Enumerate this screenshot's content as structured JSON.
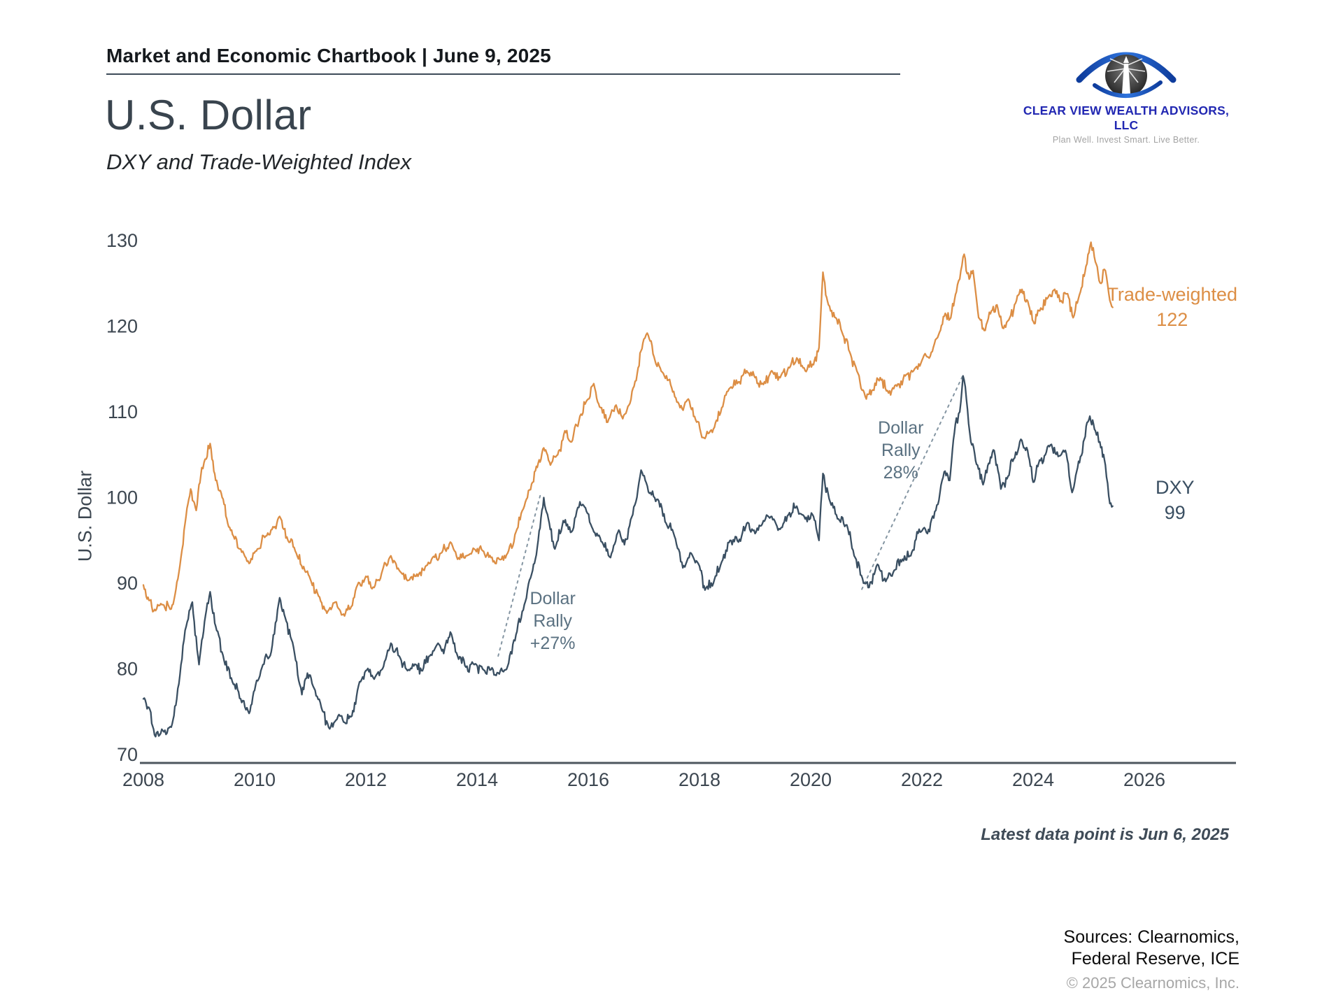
{
  "header": {
    "title": "Market and Economic Chartbook | June 9, 2025"
  },
  "logo": {
    "name": "Clear View Wealth Advisors, LLC",
    "tagline": "Plan Well. Invest Smart. Live Better."
  },
  "page": {
    "title": "U.S. Dollar",
    "subtitle": "DXY and Trade-Weighted Index"
  },
  "footnote": "Latest data point is Jun 6, 2025",
  "sources": {
    "line1": "Sources: Clearnomics,",
    "line2": "Federal Reserve, ICE",
    "copyright": "© 2025 Clearnomics, Inc."
  },
  "chart_data": {
    "type": "line",
    "title": "U.S. Dollar",
    "subtitle": "DXY and Trade-Weighted Index",
    "ylabel": "U.S. Dollar",
    "ylim": [
      70,
      130
    ],
    "yticks": [
      70,
      80,
      90,
      100,
      110,
      120,
      130
    ],
    "xticks": [
      2008,
      2010,
      2012,
      2014,
      2016,
      2018,
      2020,
      2022,
      2024,
      2026
    ],
    "xlim": [
      2008,
      2027.6
    ],
    "grid": false,
    "legend_position": "end-of-line-labels",
    "colors": {
      "trade_weighted": "#dc8e45",
      "dxy": "#3a4f62",
      "annotation_text": "#5a7181",
      "dashed_line": "#8495a2",
      "axis_line": "#4d565e",
      "tick_text": "#3c4650"
    },
    "annotations": [
      {
        "lines": [
          "Dollar",
          "Rally",
          "+27%"
        ],
        "text_x": 2015.36,
        "text_y": 88.3,
        "line_from": [
          2014.38,
          81.5
        ],
        "line_to": [
          2015.15,
          100.6
        ]
      },
      {
        "lines": [
          "Dollar",
          "Rally",
          "28%"
        ],
        "text_x": 2021.62,
        "text_y": 108.2,
        "line_from": [
          2020.92,
          89.3
        ],
        "line_to": [
          2022.74,
          114.3
        ]
      }
    ],
    "series": [
      {
        "name": "Trade-weighted",
        "color": "#dc8e45",
        "label": {
          "text": "Trade-weighted",
          "value_text": "122",
          "x": 2026.5,
          "y": 123.7
        },
        "points": [
          [
            2008.0,
            89.8
          ],
          [
            2008.1,
            88.0
          ],
          [
            2008.22,
            86.8
          ],
          [
            2008.35,
            87.5
          ],
          [
            2008.5,
            87.0
          ],
          [
            2008.62,
            90.5
          ],
          [
            2008.75,
            97.0
          ],
          [
            2008.85,
            101.0
          ],
          [
            2008.95,
            98.5
          ],
          [
            2009.05,
            103.5
          ],
          [
            2009.13,
            104.5
          ],
          [
            2009.2,
            106.3
          ],
          [
            2009.3,
            102.0
          ],
          [
            2009.4,
            100.5
          ],
          [
            2009.5,
            97.5
          ],
          [
            2009.62,
            95.5
          ],
          [
            2009.75,
            94.0
          ],
          [
            2009.9,
            92.3
          ],
          [
            2010.05,
            94.0
          ],
          [
            2010.2,
            95.5
          ],
          [
            2010.35,
            96.5
          ],
          [
            2010.45,
            97.8
          ],
          [
            2010.6,
            95.0
          ],
          [
            2010.75,
            93.5
          ],
          [
            2010.9,
            91.5
          ],
          [
            2011.0,
            90.5
          ],
          [
            2011.15,
            88.5
          ],
          [
            2011.3,
            86.5
          ],
          [
            2011.45,
            87.8
          ],
          [
            2011.6,
            86.4
          ],
          [
            2011.72,
            87.0
          ],
          [
            2011.85,
            89.8
          ],
          [
            2012.0,
            90.8
          ],
          [
            2012.15,
            89.5
          ],
          [
            2012.3,
            91.5
          ],
          [
            2012.45,
            93.2
          ],
          [
            2012.6,
            91.5
          ],
          [
            2012.75,
            90.3
          ],
          [
            2012.9,
            90.8
          ],
          [
            2013.05,
            91.5
          ],
          [
            2013.2,
            93.0
          ],
          [
            2013.35,
            93.5
          ],
          [
            2013.52,
            94.8
          ],
          [
            2013.65,
            92.8
          ],
          [
            2013.8,
            93.2
          ],
          [
            2013.95,
            94.0
          ],
          [
            2014.1,
            93.8
          ],
          [
            2014.25,
            93.0
          ],
          [
            2014.4,
            92.8
          ],
          [
            2014.55,
            93.5
          ],
          [
            2014.7,
            96.0
          ],
          [
            2014.85,
            99.0
          ],
          [
            2015.0,
            101.8
          ],
          [
            2015.1,
            104.0
          ],
          [
            2015.2,
            105.8
          ],
          [
            2015.32,
            103.8
          ],
          [
            2015.45,
            105.0
          ],
          [
            2015.58,
            107.8
          ],
          [
            2015.7,
            106.5
          ],
          [
            2015.85,
            109.5
          ],
          [
            2016.0,
            111.5
          ],
          [
            2016.1,
            113.3
          ],
          [
            2016.22,
            110.5
          ],
          [
            2016.35,
            108.8
          ],
          [
            2016.5,
            110.8
          ],
          [
            2016.62,
            109.2
          ],
          [
            2016.75,
            111.0
          ],
          [
            2016.88,
            114.5
          ],
          [
            2017.0,
            118.5
          ],
          [
            2017.06,
            119.2
          ],
          [
            2017.2,
            116.0
          ],
          [
            2017.35,
            114.5
          ],
          [
            2017.5,
            112.8
          ],
          [
            2017.65,
            110.5
          ],
          [
            2017.8,
            111.5
          ],
          [
            2017.95,
            108.8
          ],
          [
            2018.1,
            106.9
          ],
          [
            2018.25,
            108.0
          ],
          [
            2018.4,
            110.5
          ],
          [
            2018.55,
            112.8
          ],
          [
            2018.7,
            113.5
          ],
          [
            2018.85,
            114.8
          ],
          [
            2019.0,
            114.0
          ],
          [
            2019.15,
            113.2
          ],
          [
            2019.3,
            114.8
          ],
          [
            2019.45,
            114.0
          ],
          [
            2019.6,
            115.2
          ],
          [
            2019.75,
            116.3
          ],
          [
            2019.9,
            114.8
          ],
          [
            2020.05,
            115.5
          ],
          [
            2020.15,
            117.5
          ],
          [
            2020.22,
            126.3
          ],
          [
            2020.32,
            122.5
          ],
          [
            2020.45,
            121.0
          ],
          [
            2020.58,
            119.0
          ],
          [
            2020.7,
            117.0
          ],
          [
            2020.85,
            114.5
          ],
          [
            2021.0,
            111.5
          ],
          [
            2021.1,
            112.5
          ],
          [
            2021.25,
            114.0
          ],
          [
            2021.4,
            112.2
          ],
          [
            2021.55,
            113.0
          ],
          [
            2021.7,
            114.2
          ],
          [
            2021.85,
            114.8
          ],
          [
            2022.0,
            116.0
          ],
          [
            2022.15,
            116.5
          ],
          [
            2022.3,
            119.0
          ],
          [
            2022.42,
            121.5
          ],
          [
            2022.52,
            121.0
          ],
          [
            2022.62,
            124.0
          ],
          [
            2022.7,
            126.5
          ],
          [
            2022.76,
            128.4
          ],
          [
            2022.85,
            125.5
          ],
          [
            2022.92,
            126.5
          ],
          [
            2023.02,
            121.0
          ],
          [
            2023.12,
            119.5
          ],
          [
            2023.25,
            121.8
          ],
          [
            2023.35,
            122.5
          ],
          [
            2023.45,
            119.8
          ],
          [
            2023.58,
            121.0
          ],
          [
            2023.7,
            123.0
          ],
          [
            2023.8,
            124.3
          ],
          [
            2023.92,
            122.5
          ],
          [
            2024.02,
            120.3
          ],
          [
            2024.12,
            121.8
          ],
          [
            2024.25,
            123.2
          ],
          [
            2024.37,
            124.2
          ],
          [
            2024.5,
            123.0
          ],
          [
            2024.62,
            123.8
          ],
          [
            2024.72,
            121.0
          ],
          [
            2024.85,
            124.0
          ],
          [
            2024.95,
            127.0
          ],
          [
            2025.04,
            129.8
          ],
          [
            2025.12,
            127.5
          ],
          [
            2025.22,
            125.0
          ],
          [
            2025.3,
            126.5
          ],
          [
            2025.38,
            123.0
          ],
          [
            2025.43,
            122.2
          ]
        ]
      },
      {
        "name": "DXY",
        "color": "#3a4f62",
        "label": {
          "text": "DXY",
          "value_text": "99",
          "x": 2026.55,
          "y": 101.2
        },
        "points": [
          [
            2008.0,
            76.5
          ],
          [
            2008.1,
            75.5
          ],
          [
            2008.2,
            72.3
          ],
          [
            2008.35,
            72.8
          ],
          [
            2008.5,
            73.2
          ],
          [
            2008.6,
            76.5
          ],
          [
            2008.75,
            84.5
          ],
          [
            2008.88,
            87.8
          ],
          [
            2009.0,
            80.5
          ],
          [
            2009.1,
            85.5
          ],
          [
            2009.2,
            89.0
          ],
          [
            2009.3,
            85.0
          ],
          [
            2009.45,
            81.0
          ],
          [
            2009.6,
            78.5
          ],
          [
            2009.75,
            76.5
          ],
          [
            2009.9,
            74.8
          ],
          [
            2010.0,
            77.5
          ],
          [
            2010.15,
            80.5
          ],
          [
            2010.3,
            82.0
          ],
          [
            2010.45,
            88.3
          ],
          [
            2010.55,
            86.0
          ],
          [
            2010.7,
            82.5
          ],
          [
            2010.85,
            77.0
          ],
          [
            2010.95,
            79.5
          ],
          [
            2011.05,
            78.0
          ],
          [
            2011.2,
            75.5
          ],
          [
            2011.35,
            73.0
          ],
          [
            2011.5,
            74.5
          ],
          [
            2011.6,
            73.8
          ],
          [
            2011.75,
            74.5
          ],
          [
            2011.85,
            77.5
          ],
          [
            2012.0,
            79.8
          ],
          [
            2012.15,
            78.8
          ],
          [
            2012.3,
            80.0
          ],
          [
            2012.45,
            83.0
          ],
          [
            2012.6,
            81.5
          ],
          [
            2012.75,
            79.8
          ],
          [
            2012.9,
            80.5
          ],
          [
            2013.0,
            79.8
          ],
          [
            2013.15,
            81.5
          ],
          [
            2013.3,
            83.0
          ],
          [
            2013.4,
            81.8
          ],
          [
            2013.52,
            84.3
          ],
          [
            2013.65,
            81.5
          ],
          [
            2013.8,
            80.2
          ],
          [
            2013.95,
            80.5
          ],
          [
            2014.1,
            80.0
          ],
          [
            2014.25,
            79.9
          ],
          [
            2014.4,
            79.4
          ],
          [
            2014.55,
            80.3
          ],
          [
            2014.7,
            84.0
          ],
          [
            2014.85,
            87.5
          ],
          [
            2015.0,
            91.5
          ],
          [
            2015.1,
            95.0
          ],
          [
            2015.2,
            100.0
          ],
          [
            2015.3,
            97.0
          ],
          [
            2015.4,
            94.0
          ],
          [
            2015.55,
            97.3
          ],
          [
            2015.7,
            96.0
          ],
          [
            2015.85,
            99.5
          ],
          [
            2015.95,
            98.8
          ],
          [
            2016.1,
            96.0
          ],
          [
            2016.25,
            94.8
          ],
          [
            2016.4,
            93.0
          ],
          [
            2016.55,
            96.2
          ],
          [
            2016.65,
            94.5
          ],
          [
            2016.8,
            98.0
          ],
          [
            2016.95,
            103.2
          ],
          [
            2017.1,
            100.5
          ],
          [
            2017.25,
            99.8
          ],
          [
            2017.4,
            97.0
          ],
          [
            2017.55,
            95.5
          ],
          [
            2017.7,
            91.8
          ],
          [
            2017.85,
            93.5
          ],
          [
            2018.0,
            92.0
          ],
          [
            2018.1,
            89.2
          ],
          [
            2018.25,
            90.0
          ],
          [
            2018.4,
            92.5
          ],
          [
            2018.55,
            95.0
          ],
          [
            2018.7,
            94.8
          ],
          [
            2018.85,
            97.0
          ],
          [
            2019.0,
            95.8
          ],
          [
            2019.15,
            97.3
          ],
          [
            2019.3,
            97.8
          ],
          [
            2019.45,
            96.3
          ],
          [
            2019.6,
            98.0
          ],
          [
            2019.75,
            99.0
          ],
          [
            2019.9,
            97.5
          ],
          [
            2020.05,
            97.8
          ],
          [
            2020.15,
            95.0
          ],
          [
            2020.22,
            102.8
          ],
          [
            2020.35,
            99.5
          ],
          [
            2020.5,
            97.5
          ],
          [
            2020.65,
            96.8
          ],
          [
            2020.8,
            93.0
          ],
          [
            2020.95,
            90.0
          ],
          [
            2021.05,
            89.5
          ],
          [
            2021.2,
            92.2
          ],
          [
            2021.35,
            90.2
          ],
          [
            2021.5,
            91.5
          ],
          [
            2021.65,
            92.8
          ],
          [
            2021.8,
            93.2
          ],
          [
            2021.95,
            96.3
          ],
          [
            2022.1,
            95.8
          ],
          [
            2022.25,
            98.5
          ],
          [
            2022.4,
            103.0
          ],
          [
            2022.5,
            102.0
          ],
          [
            2022.6,
            108.5
          ],
          [
            2022.68,
            110.0
          ],
          [
            2022.74,
            114.2
          ],
          [
            2022.8,
            111.5
          ],
          [
            2022.88,
            106.5
          ],
          [
            2023.0,
            103.8
          ],
          [
            2023.1,
            101.5
          ],
          [
            2023.2,
            104.0
          ],
          [
            2023.3,
            105.5
          ],
          [
            2023.42,
            101.0
          ],
          [
            2023.55,
            102.5
          ],
          [
            2023.65,
            104.5
          ],
          [
            2023.78,
            106.8
          ],
          [
            2023.9,
            105.5
          ],
          [
            2024.0,
            101.8
          ],
          [
            2024.1,
            104.0
          ],
          [
            2024.22,
            105.0
          ],
          [
            2024.33,
            106.2
          ],
          [
            2024.45,
            104.8
          ],
          [
            2024.58,
            105.5
          ],
          [
            2024.7,
            100.6
          ],
          [
            2024.8,
            103.5
          ],
          [
            2024.92,
            106.8
          ],
          [
            2025.02,
            109.5
          ],
          [
            2025.12,
            107.8
          ],
          [
            2025.2,
            106.5
          ],
          [
            2025.3,
            103.8
          ],
          [
            2025.38,
            99.3
          ],
          [
            2025.43,
            99.0
          ]
        ]
      }
    ]
  }
}
